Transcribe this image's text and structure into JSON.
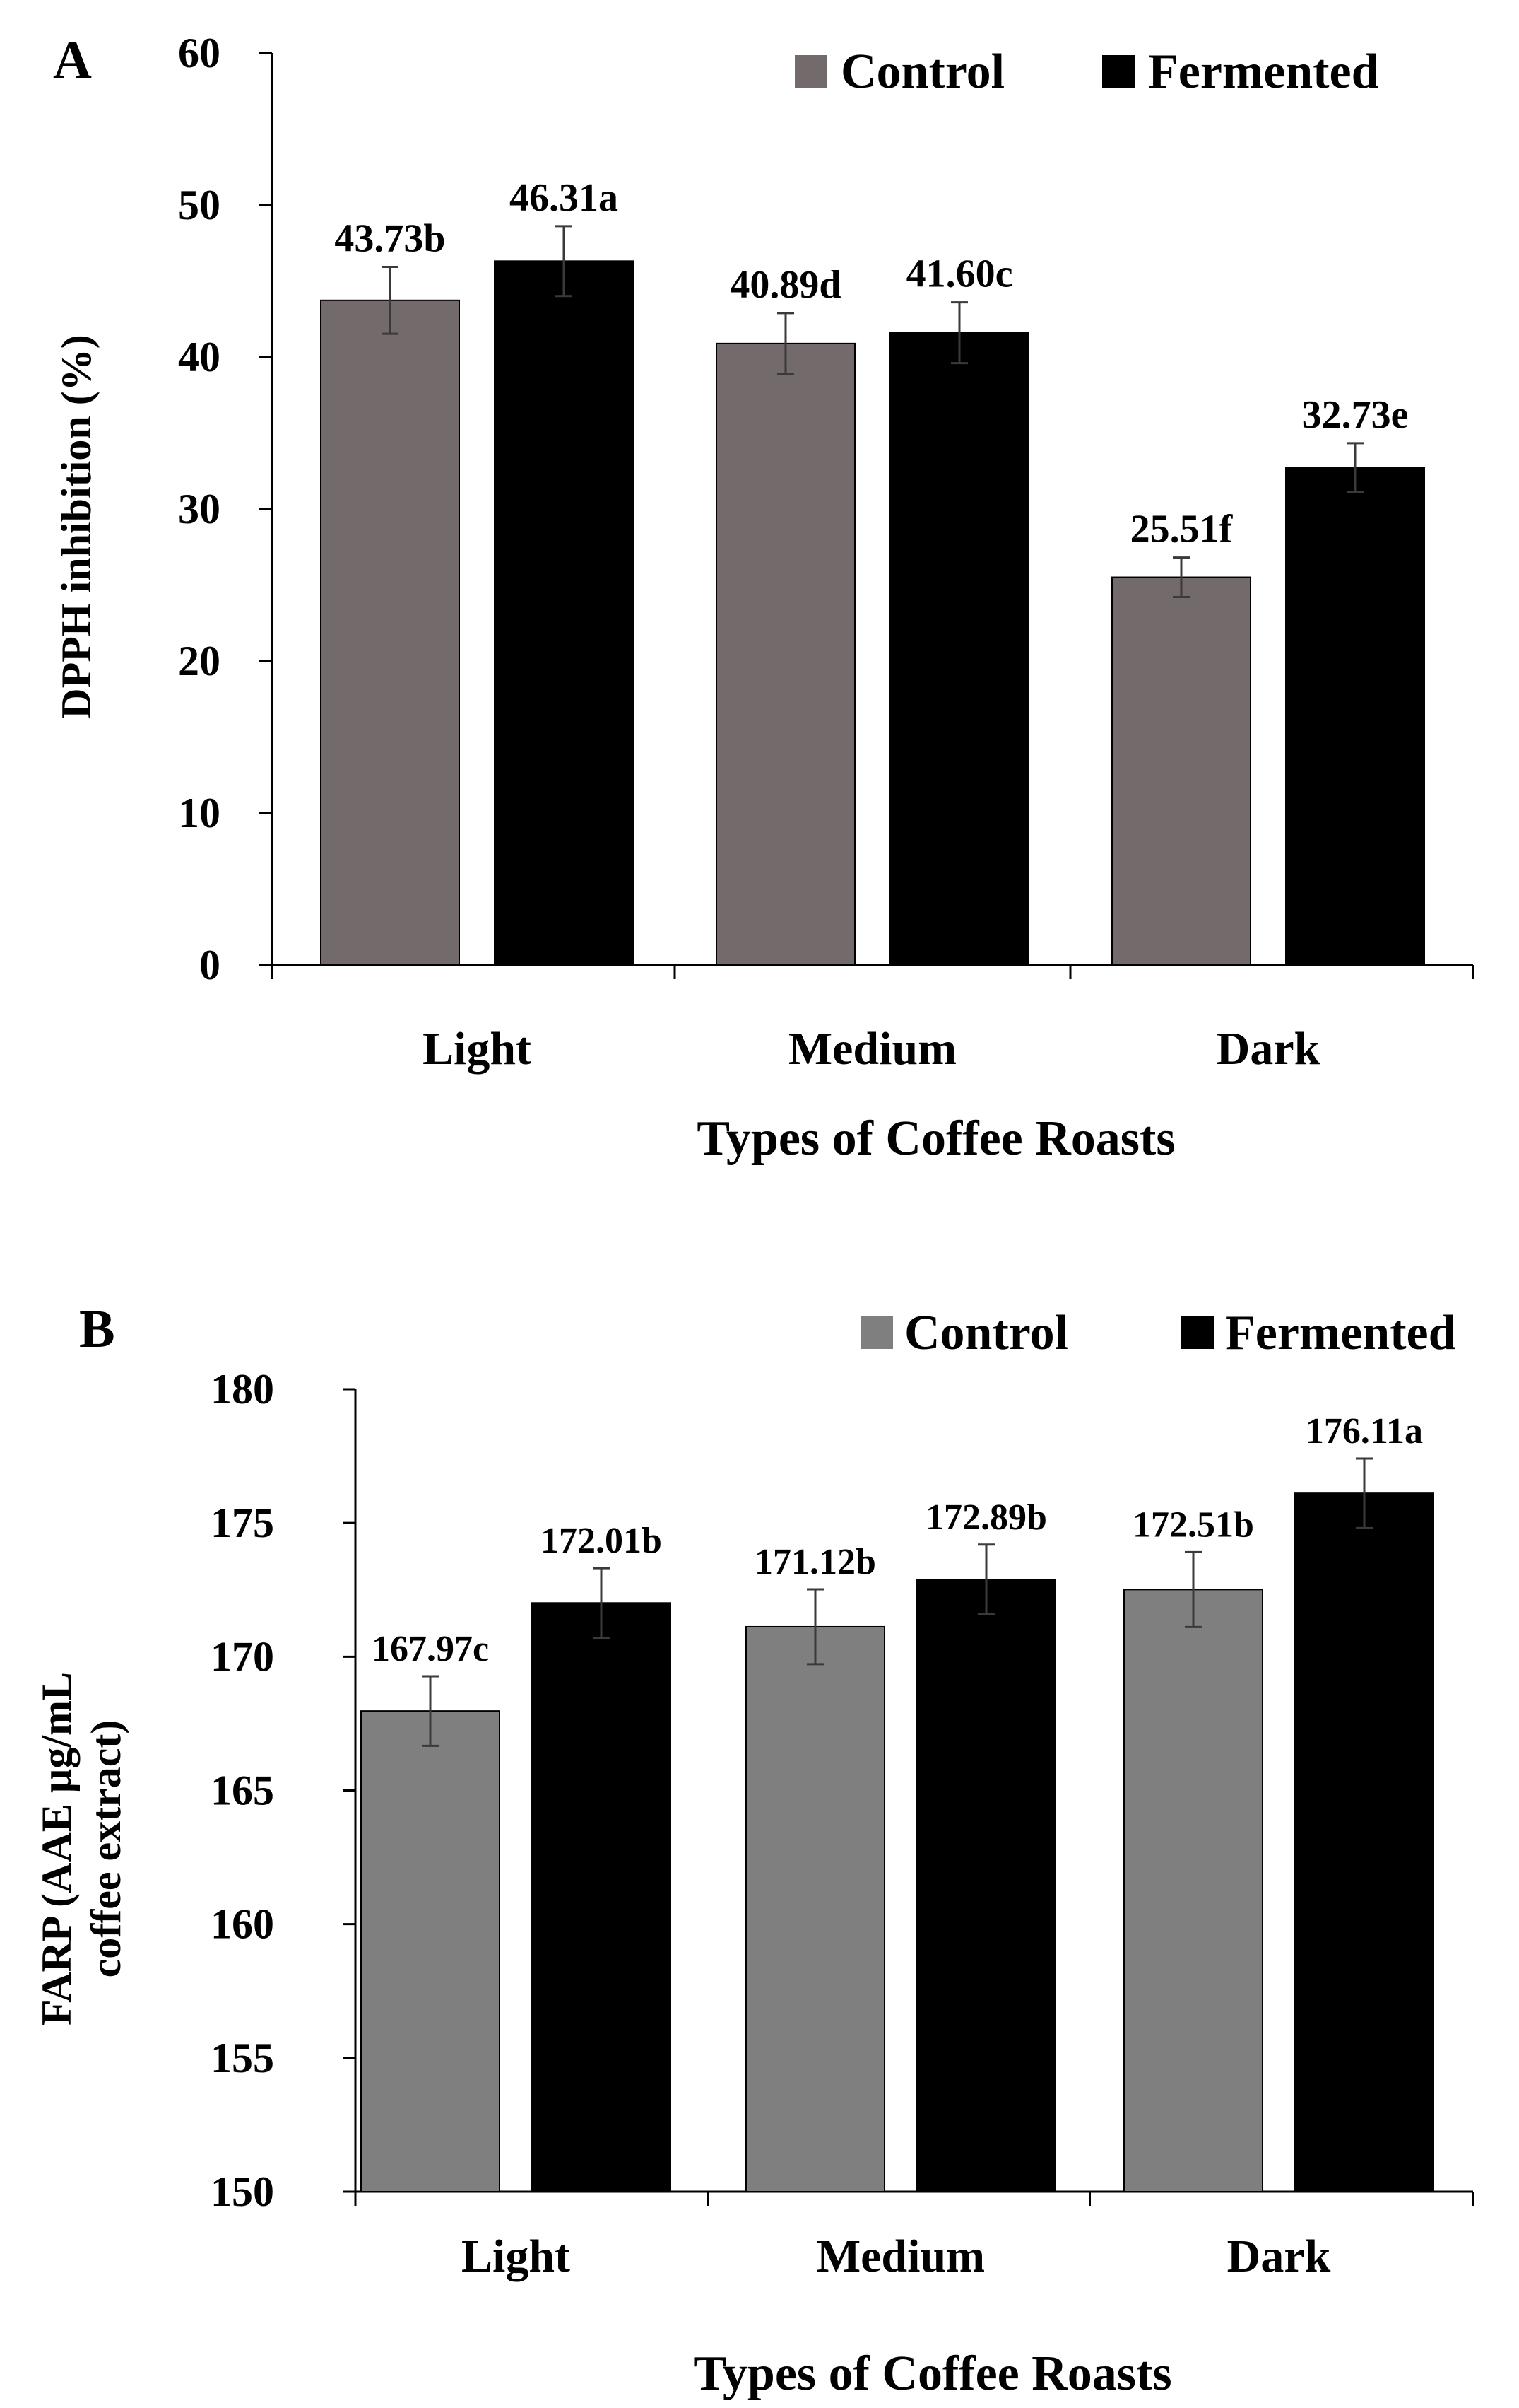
{
  "chart_data": [
    {
      "type": "bar",
      "panel_label": "A",
      "categories": [
        "Light",
        "Medium",
        "Dark"
      ],
      "series": [
        {
          "name": "Control",
          "color": "#736b6b",
          "values": [
            43.73,
            40.89,
            25.51
          ],
          "errors": [
            2.2,
            2.0,
            1.3
          ],
          "labels": [
            "43.73b",
            "40.89d",
            "25.51f"
          ]
        },
        {
          "name": "Fermented",
          "color": "#000000",
          "values": [
            46.31,
            41.6,
            32.73
          ],
          "errors": [
            2.3,
            2.0,
            1.6
          ],
          "labels": [
            "46.31a",
            "41.60c",
            "32.73e"
          ]
        }
      ],
      "xlabel": "Types of Coffee Roasts",
      "ylabel": "DPPH inhibition (%)",
      "ylim": [
        0,
        60
      ],
      "yticks": [
        0,
        10,
        20,
        30,
        40,
        50,
        60
      ],
      "legend": "top-right"
    },
    {
      "type": "bar",
      "panel_label": "B",
      "categories": [
        "Light",
        "Medium",
        "Dark"
      ],
      "series": [
        {
          "name": "Control",
          "color": "#7f7f7f",
          "values": [
            167.97,
            171.12,
            172.51
          ],
          "errors": [
            1.3,
            1.4,
            1.4
          ],
          "labels": [
            "167.97c",
            "171.12b",
            "172.51b"
          ]
        },
        {
          "name": "Fermented",
          "color": "#000000",
          "values": [
            172.01,
            172.89,
            176.11
          ],
          "errors": [
            1.3,
            1.3,
            1.3
          ],
          "labels": [
            "172.01b",
            "172.89b",
            "176.11a"
          ]
        }
      ],
      "xlabel": "Types of Coffee Roasts",
      "ylabel_lines": [
        "FARP (AAE µg/mL",
        "coffee extract)"
      ],
      "ylim": [
        150,
        180
      ],
      "yticks": [
        150,
        155,
        160,
        165,
        170,
        175,
        180
      ],
      "legend": "top-right"
    }
  ]
}
